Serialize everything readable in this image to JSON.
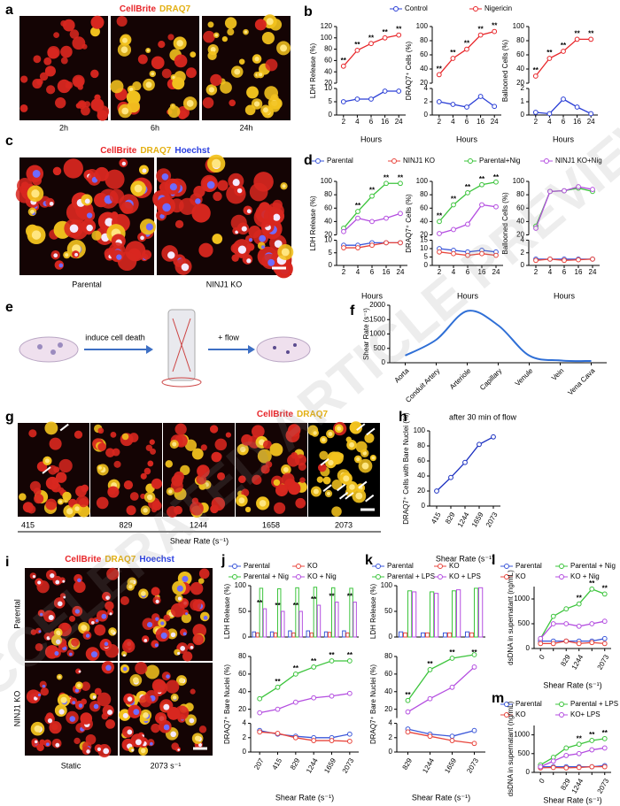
{
  "watermark": "ACCELERATED ARTICLE PREVIEW",
  "panels": {
    "a": {
      "label": "a",
      "stain": [
        "CellBrite",
        "DRAQ7"
      ],
      "times": [
        "2h",
        "6h",
        "24h"
      ]
    },
    "c": {
      "label": "c",
      "stain": [
        "CellBrite",
        "DRAQ7",
        "Hoechst"
      ],
      "conditions": [
        "Parental",
        "NINJ1 KO"
      ]
    },
    "e": {
      "label": "e",
      "steps": [
        "induce cell death",
        "+ flow"
      ]
    },
    "g": {
      "label": "g",
      "stain": [
        "CellBrite",
        "DRAQ7"
      ],
      "shear_rates": [
        415,
        829,
        1244,
        1658,
        2073
      ],
      "xlabel": "Shear Rate (s⁻¹)"
    },
    "i": {
      "label": "i",
      "stain": [
        "CellBrite",
        "DRAQ7",
        "Hoechst"
      ],
      "rows": [
        "Parental",
        "NINJ1 KO"
      ],
      "columns": [
        "Static",
        "2073 s⁻¹"
      ]
    }
  },
  "chart_data": [
    {
      "label": "b",
      "xlabel": "Hours",
      "categories": [
        2,
        4,
        6,
        16,
        24
      ],
      "series": [
        {
          "name": "Control",
          "color": "#2b3fd6"
        },
        {
          "name": "Nigericin",
          "color": "#e8262a"
        }
      ],
      "charts": [
        {
          "type": "line",
          "ylabel": "LDH Release (%)",
          "segments": [
            {
              "ylim": [
                0,
                10
              ],
              "yticks": [
                0,
                5,
                10
              ]
            },
            {
              "ylim": [
                20,
                120
              ],
              "yticks": [
                20,
                40,
                60,
                80,
                100,
                120
              ]
            }
          ],
          "values": [
            [
              5,
              6,
              6,
              9,
              9
            ],
            [
              50,
              78,
              90,
              100,
              105
            ]
          ],
          "annotations": [
            "**",
            "**",
            "**",
            "**",
            "**"
          ]
        },
        {
          "type": "line",
          "ylabel": "DRAQ7⁺ Cells (%)",
          "segments": [
            {
              "ylim": [
                0,
                4
              ],
              "yticks": [
                0,
                2,
                4
              ]
            },
            {
              "ylim": [
                20,
                100
              ],
              "yticks": [
                20,
                40,
                60,
                80,
                100
              ]
            }
          ],
          "values": [
            [
              2,
              1.6,
              1.2,
              2.8,
              1.3
            ],
            [
              32,
              55,
              68,
              88,
              93
            ]
          ],
          "annotations": [
            "**",
            "**",
            "**",
            "**",
            "**"
          ]
        },
        {
          "type": "line",
          "ylabel": "Ballooned Cells (%)",
          "segments": [
            {
              "ylim": [
                0,
                2
              ],
              "yticks": [
                0,
                1,
                2
              ]
            },
            {
              "ylim": [
                20,
                100
              ],
              "yticks": [
                20,
                40,
                60,
                80,
                100
              ]
            }
          ],
          "values": [
            [
              0.2,
              0.1,
              1.2,
              0.6,
              0.1
            ],
            [
              30,
              55,
              65,
              82,
              82
            ]
          ],
          "annotations": [
            "**",
            "**",
            "**",
            "**",
            "**"
          ]
        }
      ]
    },
    {
      "label": "d",
      "xlabel": "Hours",
      "categories": [
        2,
        4,
        6,
        16,
        24
      ],
      "series": [
        {
          "name": "Parental",
          "color": "#3b57d9"
        },
        {
          "name": "NINJ1 KO",
          "color": "#e8453c"
        },
        {
          "name": "Parental+Nig",
          "color": "#3cc43c"
        },
        {
          "name": "NINJ1 KO+Nig",
          "color": "#b44ee0"
        }
      ],
      "charts": [
        {
          "type": "line",
          "ylabel": "LDH Release (%)",
          "segments": [
            {
              "ylim": [
                0,
                10
              ],
              "yticks": [
                0,
                5,
                10
              ]
            },
            {
              "ylim": [
                20,
                100
              ],
              "yticks": [
                20,
                40,
                60,
                80,
                100
              ]
            }
          ],
          "values": [
            [
              8,
              8,
              9,
              9,
              9
            ],
            [
              7,
              7,
              8,
              9,
              9
            ],
            [
              30,
              55,
              78,
              97,
              97
            ],
            [
              25,
              45,
              40,
              45,
              52
            ]
          ],
          "annotations": [
            null,
            "**",
            "**",
            "**",
            "**"
          ]
        },
        {
          "type": "line",
          "ylabel": "DRAQ7⁺ Cells (%)",
          "segments": [
            {
              "ylim": [
                0,
                15
              ],
              "yticks": [
                0,
                5,
                10,
                15
              ]
            },
            {
              "ylim": [
                20,
                100
              ],
              "yticks": [
                20,
                40,
                60,
                80,
                100
              ]
            }
          ],
          "values": [
            [
              10,
              9,
              8,
              9,
              8
            ],
            [
              8,
              7,
              6,
              7,
              6
            ],
            [
              40,
              65,
              83,
              95,
              99
            ],
            [
              22,
              28,
              36,
              65,
              62
            ]
          ],
          "annotations": [
            "**",
            "**",
            "**",
            "**",
            "**"
          ]
        },
        {
          "type": "line",
          "ylabel": "Ballooned Cells (%)",
          "segments": [
            {
              "ylim": [
                0,
                4
              ],
              "yticks": [
                0,
                2,
                4
              ]
            },
            {
              "ylim": [
                20,
                100
              ],
              "yticks": [
                20,
                40,
                60,
                80,
                100
              ]
            }
          ],
          "values": [
            [
              1,
              1,
              1,
              1,
              1
            ],
            [
              0.8,
              1,
              0.8,
              0.9,
              1
            ],
            [
              33,
              85,
              86,
              90,
              85
            ],
            [
              30,
              85,
              86,
              92,
              88
            ]
          ]
        }
      ]
    },
    {
      "label": "f",
      "categories": [
        "Aorta",
        "Conduit Artery",
        "Arteriole",
        "Capillary",
        "Venule",
        "Vein",
        "Vena Cava"
      ],
      "charts": [
        {
          "type": "spline",
          "ylabel": "Shear Rate (s⁻¹)",
          "color": "#2f6fd6",
          "ylim": [
            0,
            2000
          ],
          "yticks": [
            0,
            500,
            1000,
            1500,
            2000
          ],
          "values": [
            250,
            800,
            1800,
            1300,
            250,
            80,
            60
          ]
        }
      ]
    },
    {
      "label": "h",
      "title": "after 30 min of flow",
      "xlabel": "Shear Rate (s⁻¹)",
      "categories": [
        415,
        829,
        1244,
        1659,
        2073
      ],
      "charts": [
        {
          "type": "line",
          "ylabel": "DRAQ7⁺ Cells with Bare Nuclei (%)",
          "color": "#1a2fc0",
          "ylim": [
            0,
            100
          ],
          "yticks": [
            0,
            20,
            40,
            60,
            80,
            100
          ],
          "values": [
            20,
            38,
            58,
            82,
            92
          ]
        }
      ]
    },
    {
      "label": "j",
      "xlabel": "Shear Rate (s⁻¹)",
      "categories": [
        207,
        415,
        829,
        1244,
        1659,
        2073
      ],
      "series": [
        {
          "name": "Parental",
          "color": "#3b57d9"
        },
        {
          "name": "KO",
          "color": "#e8453c"
        },
        {
          "name": "Parental + Nig",
          "color": "#3cc43c"
        },
        {
          "name": "KO + Nig",
          "color": "#b44ee0"
        }
      ],
      "charts": [
        {
          "type": "bar",
          "ylabel": "LDH Release (%)",
          "ylim": [
            0,
            100
          ],
          "yticks": [
            0,
            50,
            100
          ],
          "values": [
            [
              10,
              10,
              12,
              12,
              10,
              12
            ],
            [
              8,
              8,
              8,
              8,
              9,
              8
            ],
            [
              95,
              94,
              96,
              97,
              96,
              95
            ],
            [
              55,
              50,
              50,
              62,
              68,
              68
            ]
          ],
          "annotations": [
            "**",
            "**",
            "**",
            "**",
            "**",
            "**"
          ]
        },
        {
          "type": "line",
          "ylabel": "DRAQ7⁺ Bare Nuclei (%)",
          "segments": [
            {
              "ylim": [
                0,
                4
              ],
              "yticks": [
                0,
                2,
                4
              ]
            },
            {
              "ylim": [
                10,
                80
              ],
              "yticks": [
                20,
                40,
                60,
                80
              ]
            }
          ],
          "values": [
            [
              3,
              2.5,
              2.2,
              2,
              2,
              2.5
            ],
            [
              2.8,
              2.6,
              2,
              1.6,
              1.6,
              1.5
            ],
            [
              32,
              45,
              60,
              68,
              75,
              75
            ],
            [
              16,
              20,
              28,
              33,
              35,
              38
            ]
          ],
          "annotations": [
            null,
            "**",
            "**",
            "**",
            "**",
            "**"
          ]
        }
      ]
    },
    {
      "label": "k",
      "xlabel": "Shear Rate (s⁻¹)",
      "categories": [
        829,
        1244,
        1659,
        2073
      ],
      "series": [
        {
          "name": "Parental",
          "color": "#3b57d9"
        },
        {
          "name": "KO",
          "color": "#e8453c"
        },
        {
          "name": "Parental + LPS",
          "color": "#3cc43c"
        },
        {
          "name": "KO + LPS",
          "color": "#b44ee0"
        }
      ],
      "charts": [
        {
          "type": "bar",
          "ylabel": "LDH Release (%)",
          "ylim": [
            0,
            100
          ],
          "yticks": [
            0,
            50,
            100
          ],
          "values": [
            [
              10,
              8,
              8,
              10
            ],
            [
              8,
              8,
              8,
              8
            ],
            [
              90,
              88,
              90,
              95
            ],
            [
              88,
              85,
              92,
              96
            ]
          ]
        },
        {
          "type": "line",
          "ylabel": "DRAQ7⁺ Bare Nuclei (%)",
          "segments": [
            {
              "ylim": [
                0,
                4
              ],
              "yticks": [
                0,
                2,
                4
              ]
            },
            {
              "ylim": [
                10,
                80
              ],
              "yticks": [
                20,
                40,
                60,
                80
              ]
            }
          ],
          "values": [
            [
              3.2,
              2.5,
              2.2,
              3
            ],
            [
              2.8,
              2.2,
              1.6,
              1.2
            ],
            [
              30,
              65,
              78,
              82
            ],
            [
              17,
              32,
              45,
              68
            ]
          ],
          "annotations": [
            "**",
            "**",
            "**",
            "**"
          ]
        }
      ]
    },
    {
      "label": "l",
      "xlabel": "Shear Rate (s⁻¹)",
      "categories": [
        0,
        null,
        829,
        1244,
        null,
        2073
      ],
      "series": [
        {
          "name": "Parental",
          "color": "#3b57d9"
        },
        {
          "name": "Parental + Nig",
          "color": "#3cc43c"
        },
        {
          "name": "KO",
          "color": "#e8453c"
        },
        {
          "name": "KO + Nig",
          "color": "#b44ee0"
        }
      ],
      "charts": [
        {
          "type": "line",
          "ylabel": "dsDNA in supernatant (ng/mL)",
          "ylim": [
            0,
            1250
          ],
          "yticks": [
            0,
            500,
            1000
          ],
          "values": [
            [
              150,
              150,
              150,
              150,
              150,
              200
            ],
            [
              200,
              650,
              800,
              900,
              1200,
              1100
            ],
            [
              100,
              100,
              150,
              100,
              120,
              100
            ],
            [
              200,
              500,
              500,
              450,
              500,
              550
            ]
          ],
          "annotations": [
            null,
            null,
            null,
            "**",
            "**",
            "**"
          ]
        }
      ]
    },
    {
      "label": "m",
      "xlabel": "Shear Rate (s⁻¹)",
      "categories": [
        0,
        null,
        829,
        1244,
        null,
        2073
      ],
      "series": [
        {
          "name": "Parental",
          "color": "#3b57d9"
        },
        {
          "name": "Parental + LPS",
          "color": "#3cc43c"
        },
        {
          "name": "KO",
          "color": "#e8453c"
        },
        {
          "name": "KO+ LPS",
          "color": "#b44ee0"
        }
      ],
      "charts": [
        {
          "type": "line",
          "ylabel": "dsDNA in supernatant (ng/mL)",
          "ylim": [
            0,
            1250
          ],
          "yticks": [
            0,
            500,
            1000
          ],
          "values": [
            [
              150,
              150,
              150,
              150,
              150,
              180
            ],
            [
              200,
              400,
              650,
              750,
              850,
              900
            ],
            [
              120,
              130,
              120,
              130,
              150,
              150
            ],
            [
              150,
              300,
              450,
              500,
              600,
              650
            ]
          ],
          "annotations": [
            null,
            null,
            null,
            "**",
            "**",
            "**"
          ]
        }
      ]
    }
  ]
}
